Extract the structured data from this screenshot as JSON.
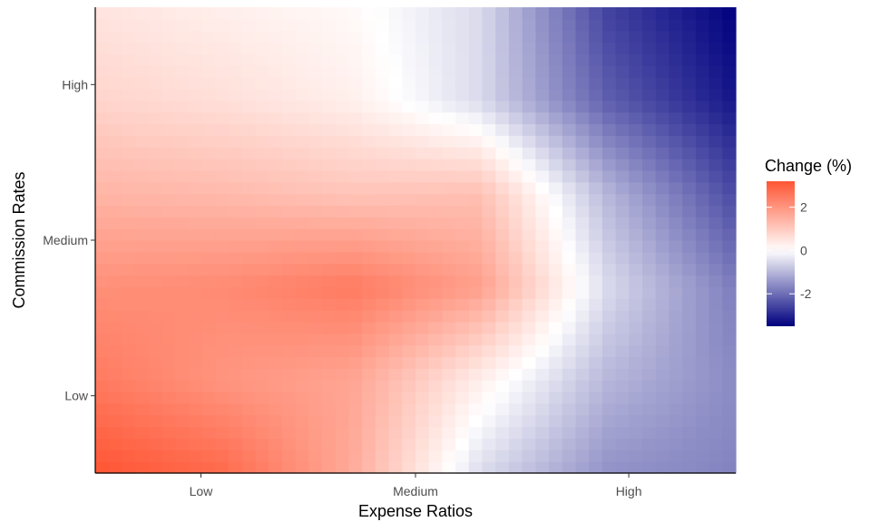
{
  "chart_data": {
    "type": "heatmap",
    "xlabel": "Expense Ratios",
    "ylabel": "Commission Rates",
    "x_ticks": [
      "Low",
      "Medium",
      "High"
    ],
    "y_ticks": [
      "Low",
      "Medium",
      "High"
    ],
    "legend": {
      "title": "Change (%)",
      "ticks": [
        2,
        0,
        -2
      ],
      "range": [
        -3.5,
        3.2
      ],
      "colors": {
        "low": "#00007f",
        "mid": "#ffffff",
        "high": "#ff5533"
      },
      "placement": "right"
    },
    "x": [
      0.0,
      0.5,
      1.0,
      1.5,
      2.0,
      2.5
    ],
    "y": [
      0.0,
      0.5,
      1.0,
      1.5,
      2.0,
      2.5
    ],
    "values": [
      [
        3.2,
        2.8,
        1.6,
        -0.5,
        -1.5,
        -1.7
      ],
      [
        2.5,
        2.0,
        1.7,
        0.3,
        -1.0,
        -1.6
      ],
      [
        2.1,
        2.2,
        2.5,
        1.8,
        -0.5,
        -1.8
      ],
      [
        1.4,
        1.3,
        1.1,
        1.2,
        -1.0,
        -2.5
      ],
      [
        0.8,
        0.6,
        0.3,
        -0.5,
        -2.2,
        -3.2
      ],
      [
        0.5,
        0.3,
        0.1,
        -0.5,
        -2.6,
        -3.5
      ]
    ],
    "grid": false
  }
}
